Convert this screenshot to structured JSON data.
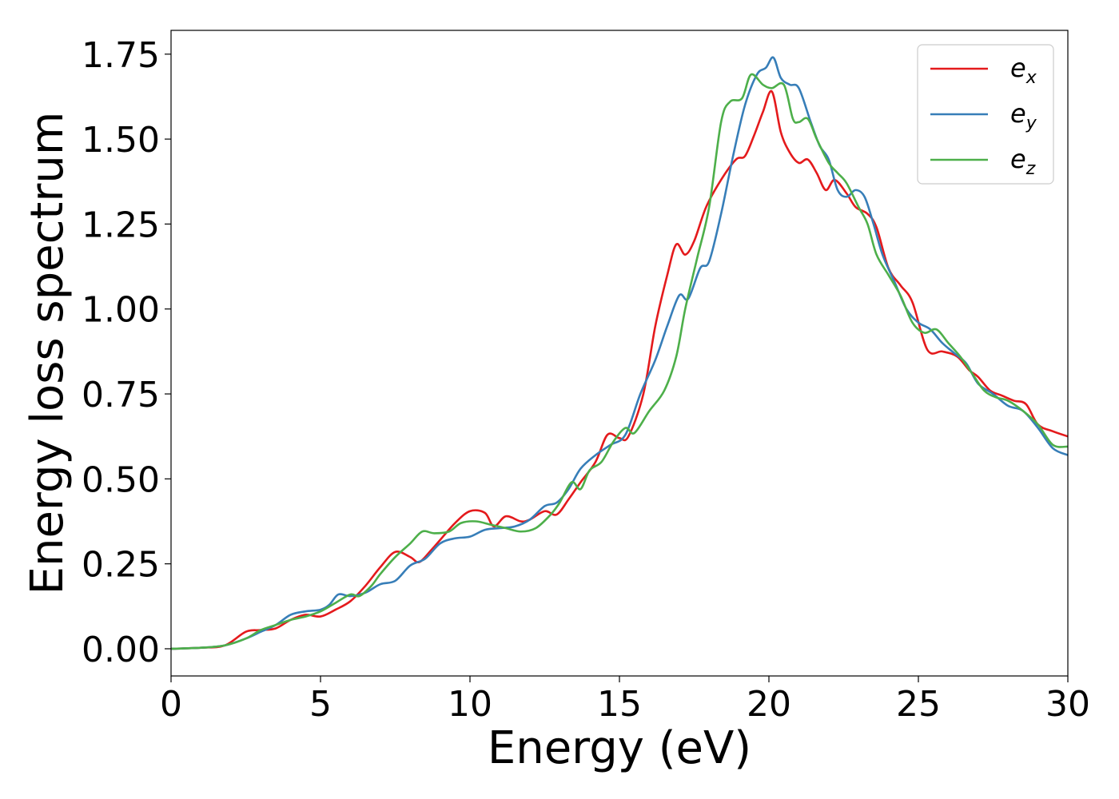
{
  "chart_data": {
    "type": "line",
    "xlabel": "Energy (eV)",
    "ylabel": "Energy loss spectrum",
    "xlim": [
      0,
      30
    ],
    "ylim": [
      -0.08,
      1.82
    ],
    "xticks": [
      0,
      5,
      10,
      15,
      20,
      25,
      30
    ],
    "xtick_labels": [
      "0",
      "5",
      "10",
      "15",
      "20",
      "25",
      "30"
    ],
    "yticks": [
      0.0,
      0.25,
      0.5,
      0.75,
      1.0,
      1.25,
      1.5,
      1.75
    ],
    "ytick_labels": [
      "0.00",
      "0.25",
      "0.50",
      "0.75",
      "1.00",
      "1.25",
      "1.50",
      "1.75"
    ],
    "grid": false,
    "legend_position": "top-right",
    "series": [
      {
        "name": "e",
        "subscript": "x",
        "color": "#e41a1c",
        "points": [
          [
            0,
            0
          ],
          [
            1,
            0.003
          ],
          [
            1.8,
            0.01
          ],
          [
            2.5,
            0.05
          ],
          [
            3,
            0.055
          ],
          [
            3.5,
            0.06
          ],
          [
            4,
            0.085
          ],
          [
            4.5,
            0.1
          ],
          [
            5,
            0.095
          ],
          [
            5.5,
            0.115
          ],
          [
            6,
            0.14
          ],
          [
            6.5,
            0.185
          ],
          [
            7,
            0.24
          ],
          [
            7.5,
            0.285
          ],
          [
            8,
            0.27
          ],
          [
            8.3,
            0.255
          ],
          [
            8.7,
            0.29
          ],
          [
            9,
            0.32
          ],
          [
            9.5,
            0.37
          ],
          [
            10,
            0.405
          ],
          [
            10.5,
            0.4
          ],
          [
            10.8,
            0.36
          ],
          [
            11.2,
            0.39
          ],
          [
            11.7,
            0.375
          ],
          [
            12,
            0.38
          ],
          [
            12.5,
            0.405
          ],
          [
            12.9,
            0.395
          ],
          [
            13.3,
            0.44
          ],
          [
            13.7,
            0.49
          ],
          [
            14.2,
            0.55
          ],
          [
            14.6,
            0.63
          ],
          [
            15,
            0.62
          ],
          [
            15.3,
            0.625
          ],
          [
            15.8,
            0.75
          ],
          [
            16.2,
            0.95
          ],
          [
            16.6,
            1.1
          ],
          [
            16.9,
            1.19
          ],
          [
            17.2,
            1.16
          ],
          [
            17.5,
            1.2
          ],
          [
            17.9,
            1.3
          ],
          [
            18.4,
            1.38
          ],
          [
            18.9,
            1.44
          ],
          [
            19.2,
            1.45
          ],
          [
            19.5,
            1.51
          ],
          [
            19.8,
            1.58
          ],
          [
            20.1,
            1.64
          ],
          [
            20.4,
            1.52
          ],
          [
            20.7,
            1.46
          ],
          [
            21,
            1.43
          ],
          [
            21.3,
            1.44
          ],
          [
            21.6,
            1.4
          ],
          [
            21.9,
            1.35
          ],
          [
            22.2,
            1.38
          ],
          [
            22.6,
            1.34
          ],
          [
            22.9,
            1.3
          ],
          [
            23.3,
            1.28
          ],
          [
            23.6,
            1.24
          ],
          [
            24,
            1.12
          ],
          [
            24.4,
            1.07
          ],
          [
            24.8,
            1.02
          ],
          [
            25.3,
            0.88
          ],
          [
            25.8,
            0.875
          ],
          [
            26.3,
            0.86
          ],
          [
            26.7,
            0.82
          ],
          [
            27,
            0.8
          ],
          [
            27.4,
            0.76
          ],
          [
            27.8,
            0.745
          ],
          [
            28.2,
            0.73
          ],
          [
            28.6,
            0.72
          ],
          [
            29,
            0.66
          ],
          [
            29.5,
            0.64
          ],
          [
            30,
            0.625
          ]
        ]
      },
      {
        "name": "e",
        "subscript": "y",
        "color": "#377eb8",
        "points": [
          [
            0,
            0
          ],
          [
            1,
            0.003
          ],
          [
            1.8,
            0.01
          ],
          [
            2.5,
            0.03
          ],
          [
            3,
            0.05
          ],
          [
            3.5,
            0.07
          ],
          [
            4,
            0.1
          ],
          [
            4.5,
            0.11
          ],
          [
            5,
            0.115
          ],
          [
            5.3,
            0.13
          ],
          [
            5.6,
            0.16
          ],
          [
            6,
            0.155
          ],
          [
            6.5,
            0.165
          ],
          [
            7,
            0.19
          ],
          [
            7.5,
            0.2
          ],
          [
            8,
            0.245
          ],
          [
            8.5,
            0.265
          ],
          [
            9,
            0.31
          ],
          [
            9.5,
            0.325
          ],
          [
            10,
            0.33
          ],
          [
            10.5,
            0.35
          ],
          [
            11,
            0.355
          ],
          [
            11.5,
            0.36
          ],
          [
            12,
            0.38
          ],
          [
            12.5,
            0.42
          ],
          [
            12.9,
            0.43
          ],
          [
            13.3,
            0.47
          ],
          [
            13.7,
            0.53
          ],
          [
            14.2,
            0.57
          ],
          [
            14.7,
            0.6
          ],
          [
            15.2,
            0.63
          ],
          [
            15.7,
            0.75
          ],
          [
            16.2,
            0.85
          ],
          [
            16.6,
            0.95
          ],
          [
            17,
            1.04
          ],
          [
            17.3,
            1.03
          ],
          [
            17.7,
            1.12
          ],
          [
            18,
            1.14
          ],
          [
            18.4,
            1.28
          ],
          [
            18.8,
            1.45
          ],
          [
            19.2,
            1.6
          ],
          [
            19.6,
            1.69
          ],
          [
            19.9,
            1.71
          ],
          [
            20.15,
            1.74
          ],
          [
            20.4,
            1.68
          ],
          [
            20.7,
            1.66
          ],
          [
            21,
            1.65
          ],
          [
            21.4,
            1.55
          ],
          [
            21.7,
            1.48
          ],
          [
            22,
            1.44
          ],
          [
            22.3,
            1.35
          ],
          [
            22.6,
            1.33
          ],
          [
            22.9,
            1.35
          ],
          [
            23.2,
            1.33
          ],
          [
            23.5,
            1.25
          ],
          [
            23.8,
            1.16
          ],
          [
            24.2,
            1.08
          ],
          [
            24.6,
            1.0
          ],
          [
            25,
            0.96
          ],
          [
            25.4,
            0.94
          ],
          [
            25.8,
            0.9
          ],
          [
            26.2,
            0.87
          ],
          [
            26.6,
            0.84
          ],
          [
            27,
            0.78
          ],
          [
            27.5,
            0.75
          ],
          [
            28,
            0.715
          ],
          [
            28.5,
            0.7
          ],
          [
            29,
            0.65
          ],
          [
            29.5,
            0.59
          ],
          [
            30,
            0.57
          ]
        ]
      },
      {
        "name": "e",
        "subscript": "z",
        "color": "#4daf4a",
        "points": [
          [
            0,
            0
          ],
          [
            1,
            0.003
          ],
          [
            1.8,
            0.01
          ],
          [
            2.5,
            0.03
          ],
          [
            3,
            0.055
          ],
          [
            3.5,
            0.07
          ],
          [
            4,
            0.085
          ],
          [
            4.5,
            0.095
          ],
          [
            5,
            0.11
          ],
          [
            5.5,
            0.135
          ],
          [
            6,
            0.16
          ],
          [
            6.3,
            0.155
          ],
          [
            6.7,
            0.185
          ],
          [
            7,
            0.22
          ],
          [
            7.5,
            0.27
          ],
          [
            8,
            0.31
          ],
          [
            8.4,
            0.345
          ],
          [
            8.8,
            0.34
          ],
          [
            9.3,
            0.345
          ],
          [
            9.7,
            0.37
          ],
          [
            10.2,
            0.375
          ],
          [
            10.7,
            0.365
          ],
          [
            11.2,
            0.355
          ],
          [
            11.7,
            0.345
          ],
          [
            12.2,
            0.355
          ],
          [
            12.7,
            0.395
          ],
          [
            13,
            0.43
          ],
          [
            13.4,
            0.49
          ],
          [
            13.7,
            0.47
          ],
          [
            14,
            0.525
          ],
          [
            14.4,
            0.55
          ],
          [
            14.8,
            0.61
          ],
          [
            15.2,
            0.65
          ],
          [
            15.5,
            0.635
          ],
          [
            16,
            0.7
          ],
          [
            16.5,
            0.76
          ],
          [
            16.9,
            0.86
          ],
          [
            17.2,
            1.0
          ],
          [
            17.6,
            1.15
          ],
          [
            18,
            1.3
          ],
          [
            18.4,
            1.55
          ],
          [
            18.7,
            1.61
          ],
          [
            19.1,
            1.62
          ],
          [
            19.4,
            1.69
          ],
          [
            19.8,
            1.66
          ],
          [
            20.1,
            1.65
          ],
          [
            20.5,
            1.66
          ],
          [
            20.8,
            1.56
          ],
          [
            21,
            1.55
          ],
          [
            21.3,
            1.56
          ],
          [
            21.6,
            1.5
          ],
          [
            22,
            1.43
          ],
          [
            22.3,
            1.4
          ],
          [
            22.6,
            1.37
          ],
          [
            23,
            1.3
          ],
          [
            23.3,
            1.25
          ],
          [
            23.6,
            1.16
          ],
          [
            24,
            1.1
          ],
          [
            24.4,
            1.04
          ],
          [
            24.8,
            0.96
          ],
          [
            25.2,
            0.93
          ],
          [
            25.6,
            0.94
          ],
          [
            26,
            0.9
          ],
          [
            26.4,
            0.86
          ],
          [
            26.8,
            0.81
          ],
          [
            27.2,
            0.76
          ],
          [
            27.6,
            0.74
          ],
          [
            28,
            0.73
          ],
          [
            28.5,
            0.7
          ],
          [
            29,
            0.66
          ],
          [
            29.5,
            0.6
          ],
          [
            30,
            0.595
          ]
        ]
      }
    ]
  }
}
